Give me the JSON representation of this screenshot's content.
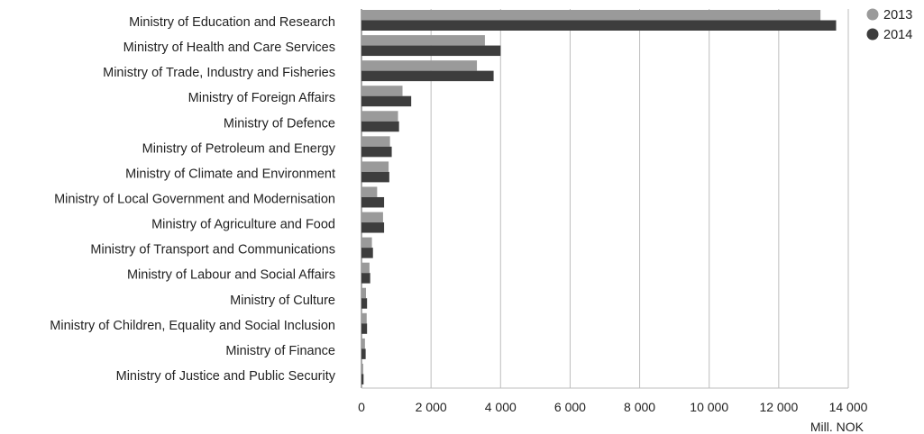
{
  "chart_data": {
    "type": "bar",
    "orientation": "horizontal",
    "categories": [
      "Ministry of Education and Research",
      "Ministry of Health and Care Services",
      "Ministry of Trade, Industry and Fisheries",
      "Ministry of Foreign Affairs",
      "Ministry of Defence",
      "Ministry of Petroleum and Energy",
      "Ministry of Climate and Environment",
      "Ministry of Local Government and Modernisation",
      "Ministry of Agriculture and Food",
      "Ministry of Transport and Communications",
      "Ministry of Labour and Social Affairs",
      "Ministry of Culture",
      "Ministry of Children, Equality and Social Inclusion",
      "Ministry of Finance",
      "Ministry of Justice and Public Security"
    ],
    "series": [
      {
        "name": "2013",
        "color": "#9a9a9a",
        "values": [
          13200,
          3550,
          3320,
          1180,
          1050,
          820,
          780,
          450,
          620,
          300,
          230,
          130,
          150,
          100,
          50
        ]
      },
      {
        "name": "2014",
        "color": "#3d3d3d",
        "values": [
          13650,
          4000,
          3800,
          1430,
          1080,
          870,
          800,
          650,
          650,
          330,
          250,
          160,
          160,
          120,
          60
        ]
      }
    ],
    "xlim": [
      0,
      14000
    ],
    "xticks": [
      0,
      2000,
      4000,
      6000,
      8000,
      10000,
      12000,
      14000
    ],
    "xtick_labels": [
      "0",
      "2 000",
      "4 000",
      "6 000",
      "8 000",
      "10 000",
      "12 000",
      "14 000"
    ],
    "xlabel": "Mill. NOK",
    "ylabel": "",
    "title": "",
    "grid": "vertical",
    "legend_position": "top-right"
  }
}
